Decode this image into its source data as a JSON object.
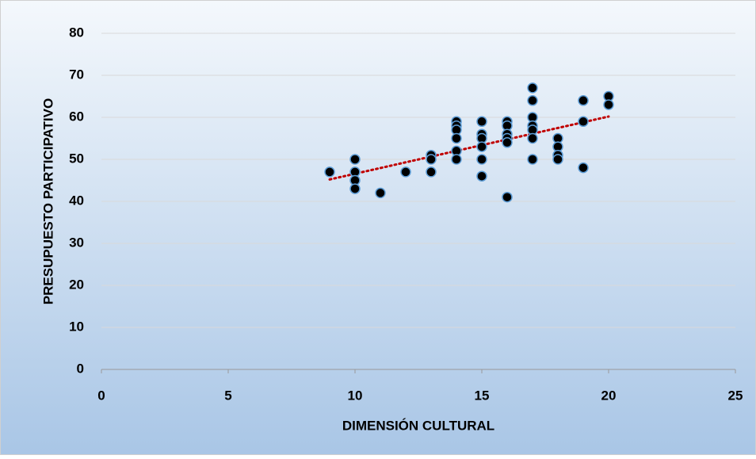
{
  "chart_data": {
    "type": "scatter",
    "xlabel": "DIMENSIÓN CULTURAL",
    "ylabel": "PRESUPUESTO PARTICIPATIVO",
    "x": [
      9,
      10,
      10,
      10,
      10,
      11,
      12,
      13,
      13,
      13,
      14,
      14,
      14,
      14,
      14,
      14,
      15,
      15,
      15,
      15,
      15,
      15,
      16,
      16,
      16,
      16,
      16,
      16,
      17,
      17,
      17,
      17,
      17,
      17,
      17,
      18,
      18,
      18,
      18,
      19,
      19,
      19,
      20,
      20
    ],
    "values": [
      47,
      50,
      47,
      45,
      43,
      42,
      47,
      51,
      50,
      47,
      59,
      58,
      57,
      55,
      52,
      50,
      59,
      56,
      55,
      53,
      50,
      46,
      59,
      58,
      56,
      55,
      54,
      41,
      67,
      64,
      60,
      58,
      57,
      55,
      50,
      55,
      53,
      51,
      50,
      64,
      59,
      48,
      65,
      63
    ],
    "color": "#000000",
    "marker_edge_color": "#5b9bd5",
    "xlim": [
      0,
      25
    ],
    "xticks": [
      0,
      5,
      10,
      15,
      20,
      25
    ],
    "ylim": [
      0,
      80
    ],
    "yticks": [
      0,
      10,
      20,
      30,
      40,
      50,
      60,
      70,
      80
    ],
    "grid": true,
    "trendline": "linear",
    "trendline_color": "#c00000"
  }
}
